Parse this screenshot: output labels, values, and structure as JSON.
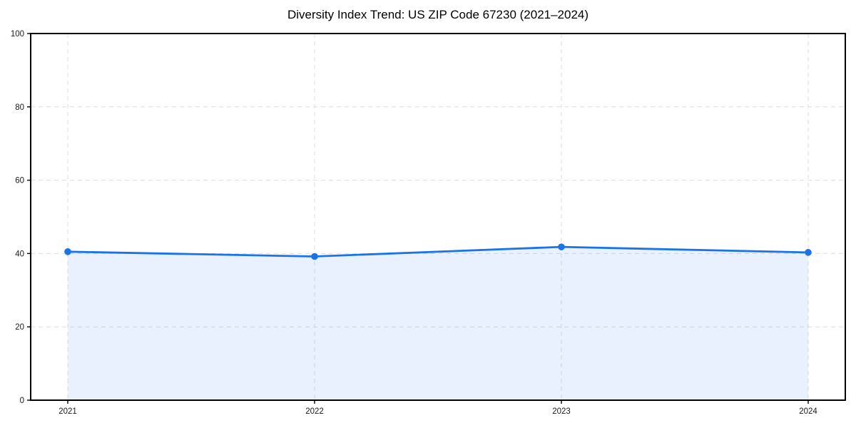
{
  "chart_data": {
    "type": "area",
    "title": "Diversity Index Trend: US ZIP Code 67230 (2021–2024)",
    "x": [
      "2021",
      "2022",
      "2023",
      "2024"
    ],
    "series": [
      {
        "name": "Diversity Index",
        "values": [
          40.5,
          39.2,
          41.8,
          40.3
        ]
      }
    ],
    "xlabel": "",
    "ylabel": "",
    "ylim": [
      0,
      100
    ],
    "yticks": [
      0,
      20,
      40,
      60,
      80,
      100
    ],
    "grid": true,
    "grid_style": "dashed",
    "legend": "none",
    "colors": {
      "line": "#1a73e8",
      "marker": "#1a73e8",
      "fill": "#1a73e8",
      "fill_opacity": 0.1,
      "gridline": "#dedede",
      "spine": "#000000",
      "tick_label": "#1a1a1a",
      "background": "#ffffff"
    }
  }
}
